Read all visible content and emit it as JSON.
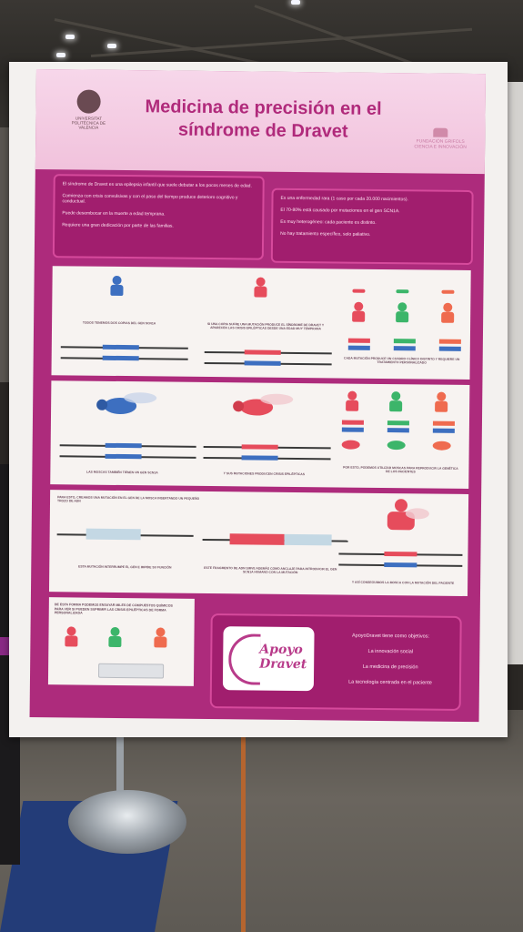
{
  "poster": {
    "title": "Medicina de precisión en el síndrome de Dravet",
    "logo_left": "UNIVERSITAT POLITÈCNICA DE VALÈNCIA",
    "logo_right": "FUNDACIÓN GRIFOLS",
    "logo_right_sub": "CIENCIA E INNOVACIÓN",
    "intro_left": [
      "El síndrome de Dravet es una epilepsia infantil que suele debutar a los pocos meses de edad.",
      "Comienza con crisis convulsivas y con el paso del tiempo produce deterioro cognitivo y conductual.",
      "Puede desembocar en la muerte a edad temprana.",
      "Requiere una gran dedicación por parte de las familias."
    ],
    "intro_right": [
      "Es una enfermedad rara (1 caso por cada 20.000 nacimientos).",
      "El 70-80% está causado por mutaciones en el gen SCN1A.",
      "Es muy heterogéneo: cada paciente es distinto.",
      "No hay tratamiento específico, solo paliativo."
    ],
    "panel1": {
      "cap1": "TODOS TENEMOS DOS COPIAS DEL GEN SCN1A",
      "cap2": "SI UNA COPIA SUFRE UNA MUTACIÓN PRODUCE EL SÍNDROME DE DRAVET Y APARECEN LAS CRISIS EPILÉPTICAS DESDE UNA EDAD MUY TEMPRANA",
      "cap3": "CADA MUTACIÓN PRODUCE UN CUADRO CLÍNICO DISTINTO Y REQUIERE UN TRATAMIENTO PERSONALIZADO"
    },
    "panel2": {
      "cap1": "LAS MOSCAS TAMBIÉN TIENEN UN GEN SCN1A",
      "cap2": "Y SUS MUTACIONES PRODUCEN CRISIS EPILÉPTICAS",
      "cap3": "POR ESTO, PODEMOS UTILIZAR MOSCAS PARA REPRODUCIR LA GENÉTICA DE LOS PACIENTES"
    },
    "panel3": {
      "cap0": "PARA ESTO, CREAMOS UNA MUTACIÓN EN EL GEN DE LA MOSCA INSERTANDO UN PEQUEÑO TROZO DE ADN",
      "cap1": "ESTA MUTACIÓN INTERRUMPE EL GEN E IMPIDE SU FUNCIÓN",
      "cap2": "ESTE FRAGMENTO DE ADN SIRVE ADEMÁS COMO ANCLAJE PARA INTRODUCIR EL GEN SCN1A HUMANO CON LA MUTACIÓN",
      "cap3": "Y ASÍ CONSEGUIMOS LA MOSCA CON LA MUTACIÓN DEL PACIENTE"
    },
    "bottom_left_text": "DE ESTA FORMA PODEMOS ENSAYAR MILES DE COMPUESTOS QUÍMICOS PARA VER SI PUEDEN SUPRIMIR LAS CRISIS EPILÉPTICAS DE FORMA PERSONALIZADA",
    "apoyo_logo_line1": "Apoyo",
    "apoyo_logo_line2": "Dravet",
    "objectives": [
      "ApoyoDravet tiene como objetivos:",
      "La innovación social",
      "La medicina de precisión",
      "La tecnología centrada en el paciente"
    ]
  },
  "colors": {
    "magenta": "#ad2b7c",
    "panel_bg": "#f7f3f1",
    "blue": "#3d6fc0",
    "red": "#e64c5c",
    "green": "#3cb56a",
    "orange": "#ef6b4f"
  }
}
